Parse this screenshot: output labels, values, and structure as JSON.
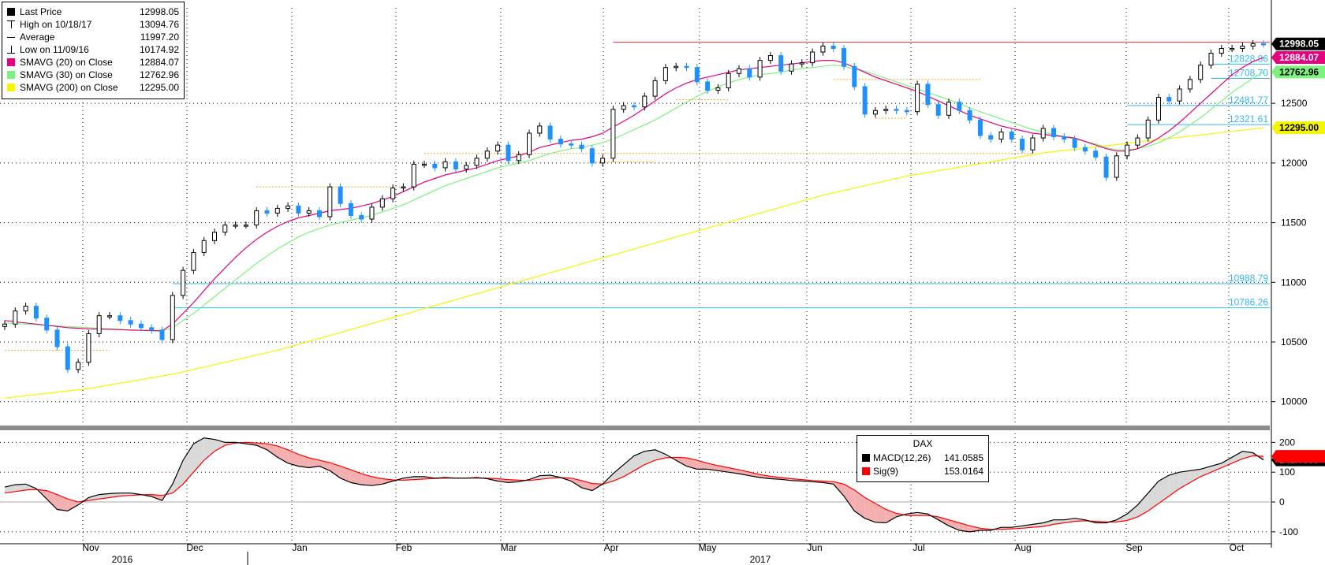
{
  "legend": {
    "items": [
      {
        "label": "Last Price",
        "value": "12998.05",
        "color": "#000000",
        "marker": "square"
      },
      {
        "label": "High on 10/18/17",
        "value": "13094.76",
        "color": "#000000",
        "marker": "high"
      },
      {
        "label": "Average",
        "value": "11997.20",
        "color": "#000000",
        "marker": "avg"
      },
      {
        "label": "Low on 11/09/16",
        "value": "10174.92",
        "color": "#000000",
        "marker": "low"
      },
      {
        "label": "SMAVG (20) on Close",
        "value": "12884.07",
        "color": "#e6007e",
        "marker": "square"
      },
      {
        "label": "SMAVG (30) on Close",
        "value": "12762.96",
        "color": "#7ef27e",
        "marker": "square"
      },
      {
        "label": "SMAVG (200) on Close",
        "value": "12295.00",
        "color": "#f5f500",
        "marker": "square"
      }
    ]
  },
  "macd_legend": {
    "title": "DAX",
    "items": [
      {
        "label": "MACD(12,26)",
        "value": "141.0585",
        "color": "#000000"
      },
      {
        "label": "Sig(9)",
        "value": "153.0164",
        "color": "#ff0000"
      }
    ]
  },
  "chart_data": [
    {
      "type": "candlestick",
      "title": "DAX",
      "ylim": [
        9800,
        13300
      ],
      "yticks": [
        10000,
        10500,
        11000,
        11500,
        12000,
        12500
      ],
      "xticks": [
        "Nov",
        "Dec",
        "Jan",
        "Feb",
        "Mar",
        "Apr",
        "May",
        "Jun",
        "Jul",
        "Aug",
        "Sep",
        "Oct"
      ],
      "years": [
        "2016",
        "2017"
      ],
      "grid": true,
      "price_tags": [
        {
          "value": 12998.05,
          "label": "12998.05",
          "bg": "#000000",
          "fg": "#ffffff"
        },
        {
          "value": 12884.07,
          "label": "12884.07",
          "bg": "#e6007e",
          "fg": "#ffffff"
        },
        {
          "value": 12762.96,
          "label": "12762.96",
          "bg": "#7ef27e",
          "fg": "#000000"
        },
        {
          "value": 12295.0,
          "label": "12295.00",
          "bg": "#f5f500",
          "fg": "#000000"
        }
      ],
      "horizontal_levels": [
        {
          "value": 13012,
          "label": "",
          "color": "#e0303a",
          "from_index": 58
        },
        {
          "value": 12828.86,
          "label": "12828.86",
          "color": "#35b7f0",
          "from_index": 115
        },
        {
          "value": 12708.7,
          "label": "12708.70",
          "color": "#35b7f0",
          "from_index": 115
        },
        {
          "value": 12481.77,
          "label": "12481.77",
          "color": "#35b7f0",
          "from_index": 107
        },
        {
          "value": 12321.61,
          "label": "12321.61",
          "color": "#35b7f0",
          "from_index": 107
        },
        {
          "value": 10988.79,
          "label": "10988.79",
          "color": "#35b7f0",
          "from_index": 16
        },
        {
          "value": 10786.26,
          "label": "10786.26",
          "color": "#35b7f0",
          "from_index": 16
        }
      ],
      "series_close": [
        10650,
        10760,
        10800,
        10700,
        10600,
        10460,
        10270,
        10330,
        10570,
        10720,
        10720,
        10680,
        10650,
        10620,
        10600,
        10520,
        10890,
        11100,
        11250,
        11350,
        11420,
        11480,
        11480,
        11480,
        11600,
        11580,
        11620,
        11640,
        11580,
        11600,
        11550,
        11800,
        11660,
        11560,
        11530,
        11630,
        11700,
        11790,
        11800,
        11990,
        11990,
        11960,
        12010,
        11950,
        11980,
        12040,
        12100,
        12150,
        12020,
        12070,
        12250,
        12310,
        12200,
        12160,
        12150,
        12120,
        12000,
        12040,
        12450,
        12480,
        12470,
        12560,
        12690,
        12800,
        12810,
        12800,
        12680,
        12610,
        12630,
        12750,
        12790,
        12720,
        12860,
        12900,
        12770,
        12830,
        12840,
        12930,
        12980,
        12960,
        12810,
        12640,
        12410,
        12440,
        12450,
        12440,
        12430,
        12660,
        12490,
        12400,
        12510,
        12440,
        12360,
        12230,
        12200,
        12260,
        12200,
        12110,
        12210,
        12290,
        12220,
        12200,
        12130,
        12100,
        12050,
        11880,
        12060,
        12150,
        12210,
        12360,
        12550,
        12520,
        12620,
        12700,
        12820,
        12920,
        12960,
        12960,
        12980,
        13000,
        12998
      ],
      "sma20": [
        10680,
        10670,
        10660,
        10650,
        10640,
        10630,
        10620,
        10615,
        10610,
        10608,
        10606,
        10604,
        10600,
        10598,
        10596,
        10594,
        10650,
        10740,
        10830,
        10930,
        11030,
        11120,
        11210,
        11290,
        11360,
        11420,
        11470,
        11510,
        11540,
        11560,
        11580,
        11600,
        11610,
        11620,
        11640,
        11660,
        11690,
        11720,
        11760,
        11800,
        11840,
        11870,
        11900,
        11920,
        11940,
        11960,
        11990,
        12020,
        12040,
        12060,
        12090,
        12130,
        12150,
        12170,
        12190,
        12200,
        12220,
        12250,
        12300,
        12350,
        12400,
        12460,
        12520,
        12580,
        12630,
        12670,
        12700,
        12720,
        12740,
        12760,
        12780,
        12790,
        12800,
        12810,
        12820,
        12830,
        12840,
        12850,
        12860,
        12860,
        12840,
        12800,
        12760,
        12720,
        12690,
        12660,
        12630,
        12600,
        12560,
        12520,
        12480,
        12440,
        12400,
        12370,
        12340,
        12310,
        12290,
        12270,
        12250,
        12240,
        12230,
        12220,
        12210,
        12180,
        12150,
        12120,
        12100,
        12100,
        12120,
        12160,
        12210,
        12270,
        12340,
        12420,
        12500,
        12580,
        12660,
        12740,
        12800,
        12850,
        12884
      ],
      "sma30": [
        10660,
        10655,
        10650,
        10645,
        10640,
        10635,
        10630,
        10625,
        10620,
        10615,
        10610,
        10606,
        10602,
        10598,
        10594,
        10590,
        10620,
        10680,
        10740,
        10810,
        10880,
        10950,
        11020,
        11090,
        11160,
        11220,
        11280,
        11330,
        11380,
        11420,
        11450,
        11480,
        11500,
        11520,
        11540,
        11560,
        11590,
        11620,
        11650,
        11690,
        11730,
        11770,
        11810,
        11840,
        11870,
        11900,
        11930,
        11960,
        11980,
        12000,
        12020,
        12050,
        12080,
        12100,
        12120,
        12130,
        12150,
        12170,
        12200,
        12240,
        12280,
        12320,
        12360,
        12410,
        12460,
        12510,
        12560,
        12600,
        12640,
        12670,
        12700,
        12720,
        12740,
        12750,
        12760,
        12780,
        12790,
        12800,
        12810,
        12820,
        12810,
        12790,
        12770,
        12740,
        12710,
        12680,
        12650,
        12620,
        12590,
        12560,
        12530,
        12500,
        12460,
        12430,
        12400,
        12370,
        12340,
        12310,
        12280,
        12260,
        12240,
        12220,
        12200,
        12180,
        12160,
        12130,
        12110,
        12110,
        12120,
        12140,
        12170,
        12210,
        12260,
        12320,
        12380,
        12450,
        12520,
        12590,
        12650,
        12710,
        12763
      ],
      "sma200": [
        10030,
        10040,
        10050,
        10060,
        10070,
        10080,
        10090,
        10100,
        10110,
        10125,
        10140,
        10155,
        10170,
        10185,
        10200,
        10215,
        10230,
        10250,
        10270,
        10290,
        10310,
        10330,
        10350,
        10370,
        10390,
        10410,
        10430,
        10455,
        10480,
        10505,
        10530,
        10555,
        10580,
        10605,
        10630,
        10655,
        10680,
        10705,
        10730,
        10755,
        10780,
        10805,
        10830,
        10855,
        10880,
        10905,
        10930,
        10955,
        10980,
        11005,
        11030,
        11055,
        11080,
        11105,
        11130,
        11155,
        11180,
        11205,
        11230,
        11255,
        11280,
        11305,
        11330,
        11355,
        11380,
        11405,
        11430,
        11455,
        11480,
        11505,
        11530,
        11555,
        11580,
        11605,
        11630,
        11655,
        11680,
        11705,
        11730,
        11750,
        11770,
        11790,
        11810,
        11830,
        11850,
        11870,
        11890,
        11905,
        11920,
        11935,
        11950,
        11965,
        11980,
        11995,
        12010,
        12025,
        12040,
        12055,
        12070,
        12085,
        12095,
        12105,
        12115,
        12125,
        12135,
        12145,
        12155,
        12165,
        12175,
        12185,
        12195,
        12205,
        12215,
        12225,
        12235,
        12245,
        12255,
        12265,
        12275,
        12285,
        12295
      ]
    },
    {
      "type": "line",
      "title": "DAX",
      "ylim": [
        -140,
        230
      ],
      "yticks": [
        -100,
        0,
        100,
        200
      ],
      "price_tags": [
        {
          "value": 141.0585,
          "label": "141.0585",
          "bg": "#000000",
          "fg": "#ffffff"
        },
        {
          "value": 153.0164,
          "label": "",
          "bg": "#ff0000",
          "fg": "#ffffff"
        }
      ],
      "series": [
        {
          "name": "MACD(12,26)",
          "color": "#000000",
          "values": [
            50,
            58,
            60,
            45,
            10,
            -25,
            -30,
            -10,
            15,
            25,
            28,
            30,
            30,
            25,
            18,
            5,
            60,
            140,
            195,
            215,
            210,
            200,
            200,
            195,
            190,
            175,
            150,
            130,
            120,
            115,
            120,
            105,
            80,
            65,
            58,
            55,
            60,
            70,
            80,
            85,
            85,
            80,
            82,
            80,
            80,
            82,
            78,
            70,
            65,
            68,
            75,
            88,
            90,
            82,
            70,
            48,
            38,
            60,
            95,
            125,
            155,
            170,
            175,
            160,
            140,
            120,
            110,
            110,
            105,
            100,
            95,
            88,
            82,
            78,
            76,
            72,
            70,
            68,
            65,
            60,
            20,
            -30,
            -55,
            -68,
            -70,
            -50,
            -40,
            -35,
            -40,
            -60,
            -80,
            -95,
            -100,
            -95,
            -95,
            -85,
            -85,
            -80,
            -75,
            -70,
            -60,
            -60,
            -55,
            -60,
            -70,
            -70,
            -60,
            -40,
            -10,
            30,
            70,
            90,
            100,
            105,
            110,
            120,
            130,
            150,
            170,
            165,
            141
          ]
        },
        {
          "name": "Sig(9)",
          "color": "#ff0000",
          "values": [
            30,
            35,
            40,
            42,
            38,
            25,
            10,
            0,
            5,
            10,
            15,
            20,
            22,
            24,
            25,
            22,
            30,
            60,
            100,
            140,
            170,
            190,
            198,
            200,
            198,
            195,
            188,
            175,
            160,
            148,
            140,
            132,
            120,
            108,
            95,
            85,
            78,
            74,
            73,
            75,
            77,
            79,
            80,
            80,
            80,
            80,
            80,
            78,
            75,
            73,
            72,
            76,
            80,
            82,
            80,
            72,
            62,
            60,
            70,
            85,
            105,
            125,
            140,
            148,
            150,
            148,
            140,
            130,
            122,
            115,
            108,
            100,
            92,
            86,
            82,
            78,
            75,
            72,
            70,
            68,
            60,
            40,
            15,
            -5,
            -25,
            -38,
            -45,
            -45,
            -45,
            -50,
            -60,
            -70,
            -80,
            -88,
            -92,
            -92,
            -90,
            -88,
            -85,
            -82,
            -75,
            -70,
            -65,
            -63,
            -65,
            -67,
            -67,
            -62,
            -50,
            -30,
            -5,
            20,
            45,
            65,
            85,
            100,
            115,
            130,
            145,
            155,
            153
          ]
        }
      ]
    }
  ],
  "colors": {
    "up_candle": "#000000",
    "down_candle": "#1e90ff",
    "grid": "#000000",
    "macd_fill_up": "#d9d9d9",
    "macd_fill_down": "#f4b0b0"
  }
}
